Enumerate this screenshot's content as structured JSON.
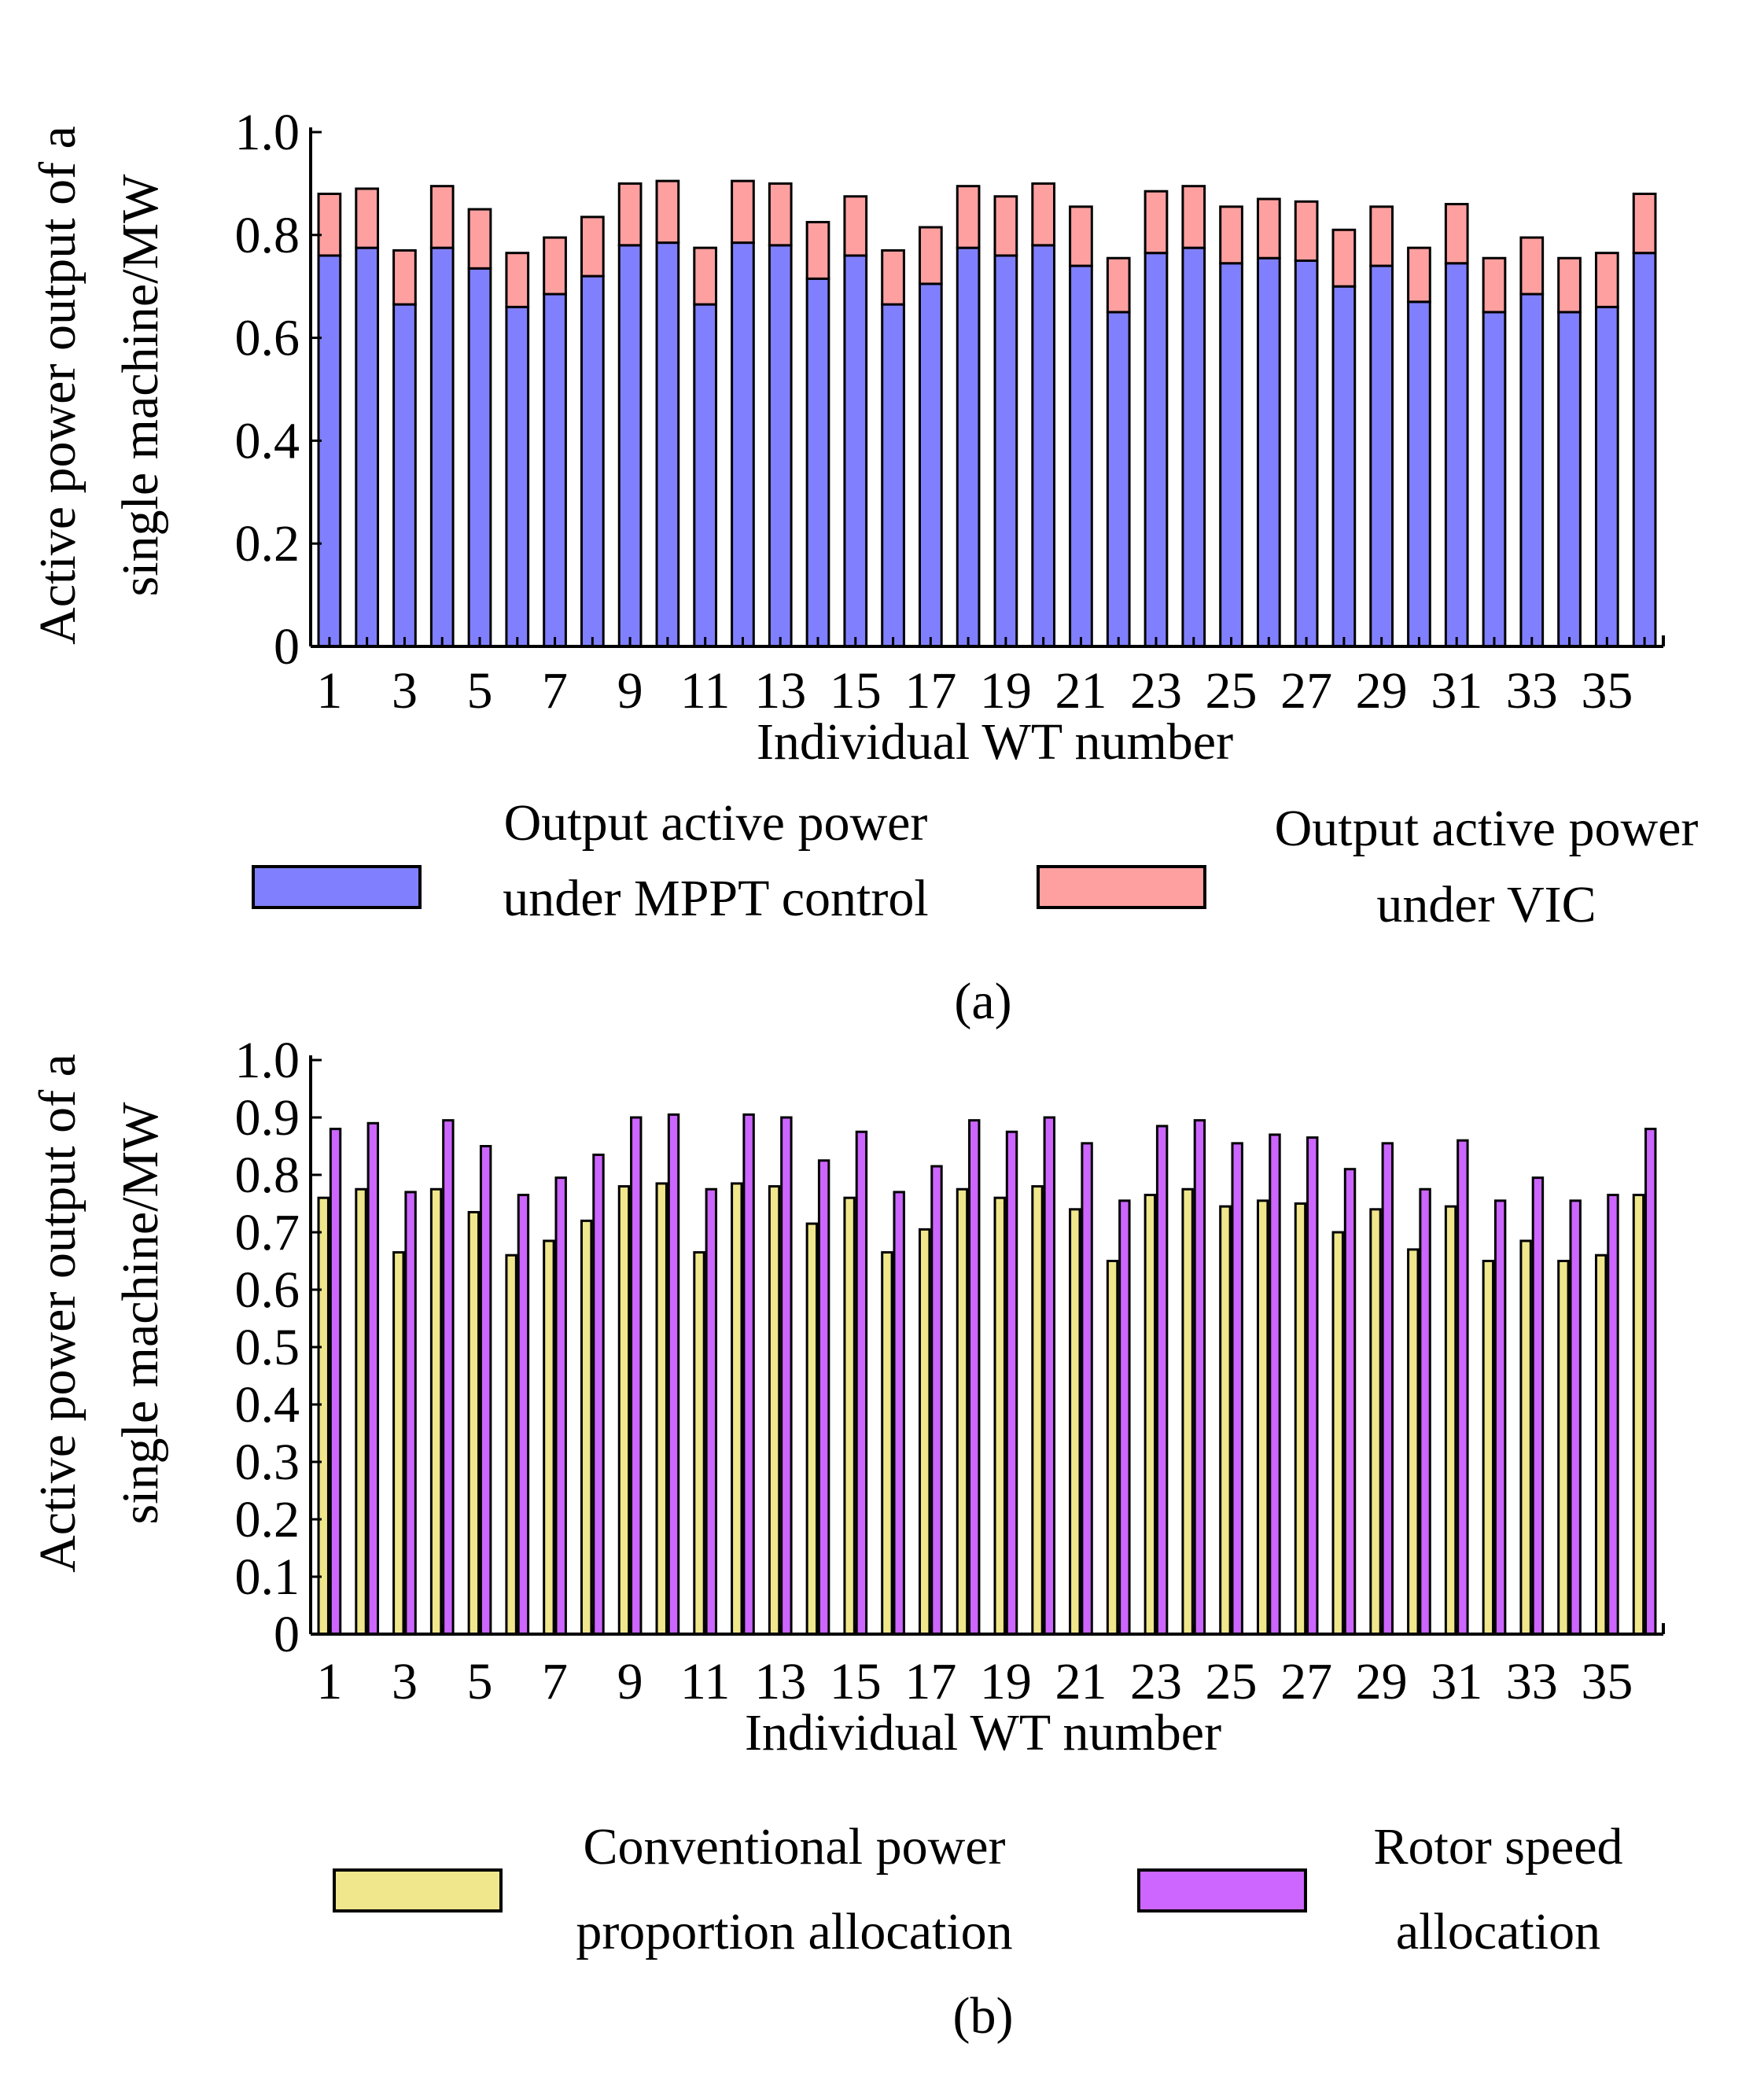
{
  "chart_data": [
    {
      "type": "bar",
      "stacked": true,
      "caption": "(a)",
      "xlabel": "Individual WT number",
      "ylabel_lines": [
        "Active power output of a",
        "single machine/MW"
      ],
      "ylim": [
        0,
        1.0
      ],
      "yticks": [
        0,
        0.2,
        0.4,
        0.6,
        0.8,
        1.0
      ],
      "ytick_labels": [
        "0",
        "0.2",
        "0.4",
        "0.6",
        "0.8",
        "1.0"
      ],
      "categories": [
        1,
        2,
        3,
        4,
        5,
        6,
        7,
        8,
        9,
        10,
        11,
        12,
        13,
        14,
        15,
        16,
        17,
        18,
        19,
        20,
        21,
        22,
        23,
        24,
        25,
        26,
        27,
        28,
        29,
        30,
        31,
        32,
        33,
        34,
        35,
        36
      ],
      "xtick_labels": [
        "1",
        "3",
        "5",
        "7",
        "9",
        "11",
        "13",
        "15",
        "17",
        "19",
        "21",
        "23",
        "25",
        "27",
        "29",
        "31",
        "33",
        "35"
      ],
      "series": [
        {
          "name": "Output active power under MPPT control",
          "legend_lines": [
            "Output active power",
            "under MPPT control"
          ],
          "color": "#8080ff",
          "values": [
            0.76,
            0.775,
            0.665,
            0.775,
            0.735,
            0.66,
            0.685,
            0.72,
            0.78,
            0.785,
            0.665,
            0.785,
            0.78,
            0.715,
            0.76,
            0.665,
            0.705,
            0.775,
            0.76,
            0.78,
            0.74,
            0.65,
            0.765,
            0.775,
            0.745,
            0.755,
            0.75,
            0.7,
            0.74,
            0.67,
            0.745,
            0.65,
            0.685,
            0.65,
            0.66,
            0.765
          ]
        },
        {
          "name": "Output active power under VIC",
          "legend_lines": [
            "Output active power",
            "under VIC"
          ],
          "color": "#ffa0a0",
          "values": [
            0.12,
            0.115,
            0.105,
            0.12,
            0.115,
            0.105,
            0.11,
            0.115,
            0.12,
            0.12,
            0.11,
            0.12,
            0.12,
            0.11,
            0.115,
            0.105,
            0.11,
            0.12,
            0.115,
            0.12,
            0.115,
            0.105,
            0.12,
            0.12,
            0.11,
            0.115,
            0.115,
            0.11,
            0.115,
            0.105,
            0.115,
            0.105,
            0.11,
            0.105,
            0.105,
            0.115
          ]
        }
      ]
    },
    {
      "type": "bar",
      "stacked": false,
      "caption": "(b)",
      "xlabel": "Individual WT number",
      "ylabel_lines": [
        "Active power output of a",
        "single machine/MW"
      ],
      "ylim": [
        0,
        1.0
      ],
      "yticks": [
        0,
        0.1,
        0.2,
        0.3,
        0.4,
        0.5,
        0.6,
        0.7,
        0.8,
        0.9,
        1.0
      ],
      "ytick_labels": [
        "0",
        "0.1",
        "0.2",
        "0.3",
        "0.4",
        "0.5",
        "0.6",
        "0.7",
        "0.8",
        "0.9",
        "1.0"
      ],
      "categories": [
        1,
        2,
        3,
        4,
        5,
        6,
        7,
        8,
        9,
        10,
        11,
        12,
        13,
        14,
        15,
        16,
        17,
        18,
        19,
        20,
        21,
        22,
        23,
        24,
        25,
        26,
        27,
        28,
        29,
        30,
        31,
        32,
        33,
        34,
        35,
        36
      ],
      "xtick_labels": [
        "1",
        "3",
        "5",
        "7",
        "9",
        "11",
        "13",
        "15",
        "17",
        "19",
        "21",
        "23",
        "25",
        "27",
        "29",
        "31",
        "33",
        "35"
      ],
      "series": [
        {
          "name": "Conventional power proportion allocation",
          "legend_lines": [
            "Conventional power",
            "proportion allocation"
          ],
          "color": "#f0e68c",
          "values": [
            0.76,
            0.775,
            0.665,
            0.775,
            0.735,
            0.66,
            0.685,
            0.72,
            0.78,
            0.785,
            0.665,
            0.785,
            0.78,
            0.715,
            0.76,
            0.665,
            0.705,
            0.775,
            0.76,
            0.78,
            0.74,
            0.65,
            0.765,
            0.775,
            0.745,
            0.755,
            0.75,
            0.7,
            0.74,
            0.67,
            0.745,
            0.65,
            0.685,
            0.65,
            0.66,
            0.765
          ]
        },
        {
          "name": "Rotor speed allocation",
          "legend_lines": [
            "Rotor speed",
            "allocation"
          ],
          "color": "#cc66ff",
          "values": [
            0.88,
            0.89,
            0.77,
            0.895,
            0.85,
            0.765,
            0.795,
            0.835,
            0.9,
            0.905,
            0.775,
            0.905,
            0.9,
            0.825,
            0.875,
            0.77,
            0.815,
            0.895,
            0.875,
            0.9,
            0.855,
            0.755,
            0.885,
            0.895,
            0.855,
            0.87,
            0.865,
            0.81,
            0.855,
            0.775,
            0.86,
            0.755,
            0.795,
            0.755,
            0.765,
            0.88
          ]
        }
      ]
    }
  ]
}
